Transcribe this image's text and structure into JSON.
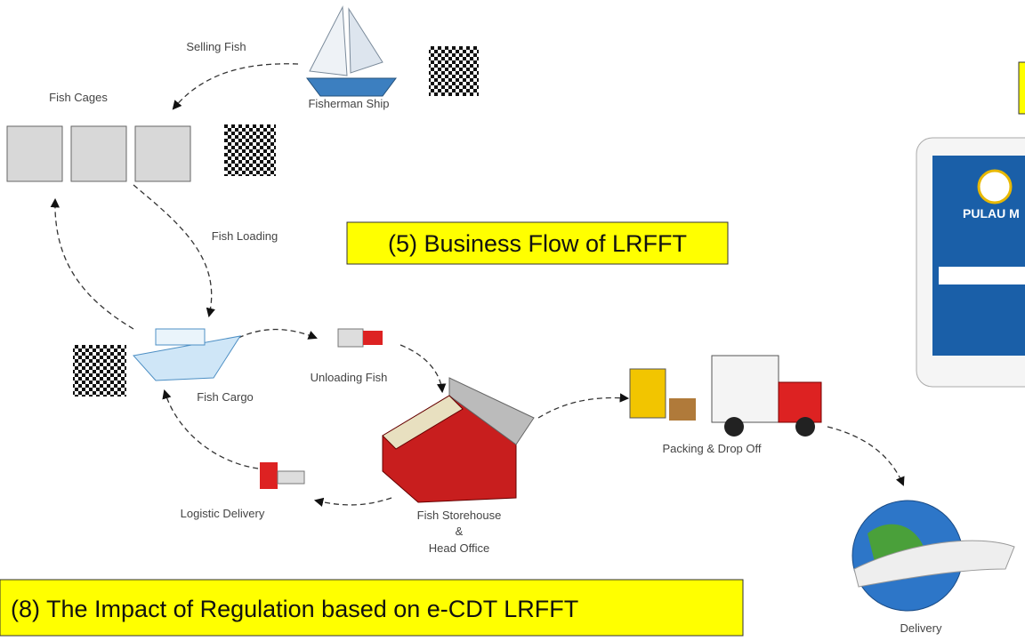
{
  "nodes": [
    {
      "label": "Fisherman Ship"
    },
    {
      "label": "Fish Cages"
    },
    {
      "label": "Fish Cargo"
    },
    {
      "label": "Unloading Fish"
    },
    {
      "label": "Fish Storehouse",
      "label2": "&",
      "label3": "Head Office"
    },
    {
      "label": "Logistic Delivery"
    },
    {
      "label": "Packing & Drop Off"
    },
    {
      "label": "Delivery"
    }
  ],
  "edges": [
    {
      "label": "Selling Fish"
    },
    {
      "label": "Fish Loading"
    }
  ],
  "callouts": [
    {
      "text": "(5) Business Flow of LRFFT"
    },
    {
      "text": "(8) The Impact of Regulation based on e-CDT LRFFT"
    }
  ],
  "tablet": {
    "title": "PULAU M"
  }
}
